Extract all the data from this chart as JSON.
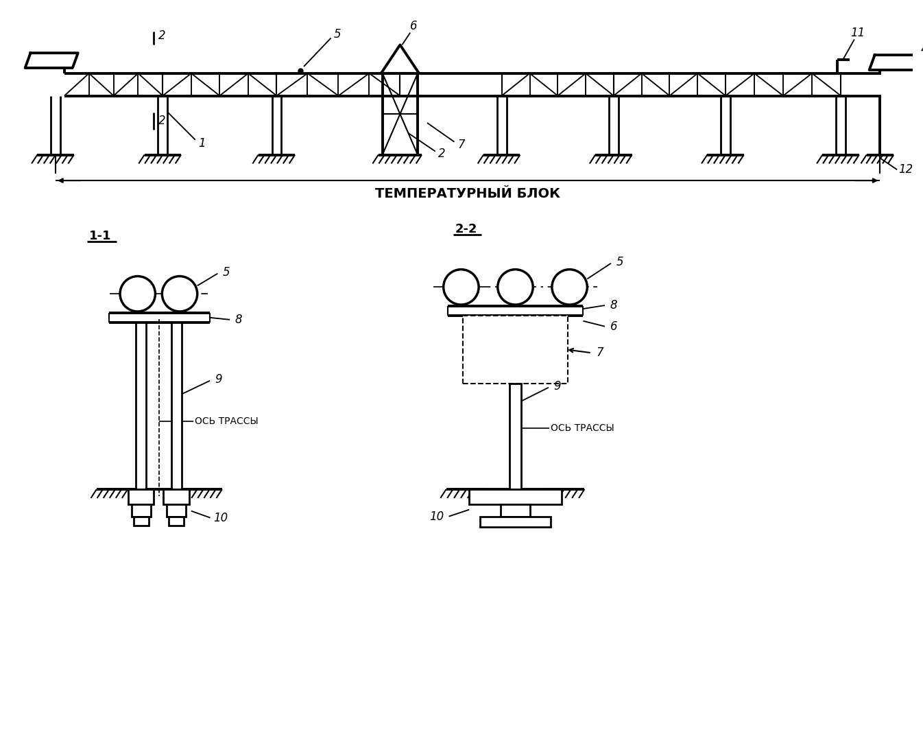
{
  "bg_color": "#ffffff",
  "lc": "#000000",
  "lw": 1.5,
  "blw": 2.8,
  "title": "ТЕМПЕРАТУРНЫЙ БЛОК",
  "s1_label": "1-1",
  "s2_label": "2-2",
  "ось": "ОСЬ ТРАССЫ"
}
